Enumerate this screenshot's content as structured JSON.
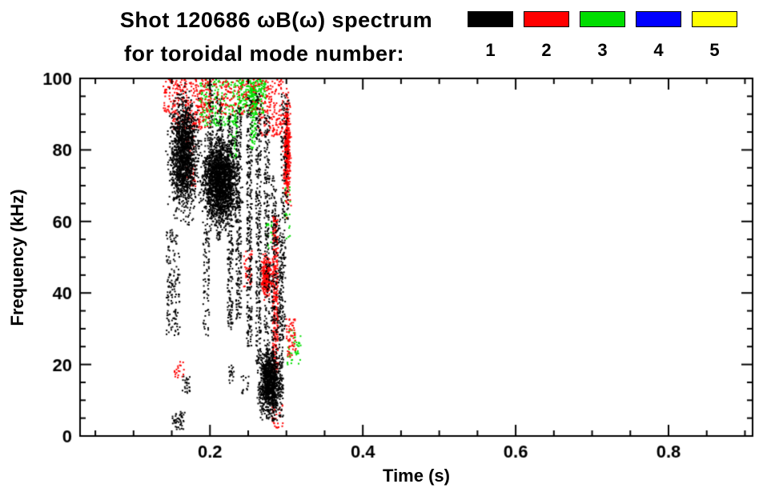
{
  "figure": {
    "title_line1": "Shot 120686 ωB(ω) spectrum",
    "title_line2": "for toroidal mode number:",
    "background": "#ffffff",
    "foreground": "#000000"
  },
  "chart_data": {
    "type": "scatter",
    "title": "Shot 120686 ωB(ω) spectrum for toroidal mode number: 1 2 3 4 5",
    "xlabel": "Time (s)",
    "ylabel": "Frequency (kHz)",
    "xlim": [
      0.03,
      0.91
    ],
    "ylim": [
      0,
      100
    ],
    "grid": false,
    "legend_position": "top-right",
    "xticks": {
      "major": [
        0.2,
        0.4,
        0.6,
        0.8
      ],
      "labels": [
        "0.2",
        "0.4",
        "0.6",
        "0.8"
      ],
      "minor_step": 0.05
    },
    "yticks": {
      "major": [
        0,
        20,
        40,
        60,
        80,
        100
      ],
      "labels": [
        "0",
        "20",
        "40",
        "60",
        "80",
        "100"
      ],
      "minor_step": 5
    },
    "legend": {
      "entries": [
        {
          "label": "1",
          "color": "#000000"
        },
        {
          "label": "2",
          "color": "#ff0000"
        },
        {
          "label": "3",
          "color": "#00dd00"
        },
        {
          "label": "4",
          "color": "#0000ff"
        },
        {
          "label": "5",
          "color": "#ffff00"
        }
      ]
    },
    "clusters": [
      {
        "color": "#00dd00",
        "t": [
          0.185,
          0.235
        ],
        "f": [
          87,
          100
        ],
        "n": 210,
        "s": 2,
        "dist": "uniform"
      },
      {
        "color": "#00dd00",
        "t": [
          0.235,
          0.272
        ],
        "f": [
          90,
          100
        ],
        "n": 270,
        "s": 2,
        "dist": "uniform"
      },
      {
        "color": "#00dd00",
        "t": [
          0.225,
          0.235
        ],
        "f": [
          78,
          90
        ],
        "n": 45,
        "s": 2,
        "dist": "uniform"
      },
      {
        "color": "#00dd00",
        "t": [
          0.252,
          0.259
        ],
        "f": [
          80,
          98
        ],
        "n": 80,
        "s": 2,
        "dist": "uniform"
      },
      {
        "color": "#00dd00",
        "t": [
          0.3,
          0.318
        ],
        "f": [
          20,
          30
        ],
        "n": 45,
        "s": 2,
        "dist": "uniform"
      },
      {
        "color": "#00dd00",
        "t": [
          0.272,
          0.281
        ],
        "f": [
          52,
          60
        ],
        "n": 18,
        "s": 2,
        "dist": "uniform"
      },
      {
        "color": "#00dd00",
        "t": [
          0.296,
          0.304
        ],
        "f": [
          55,
          70
        ],
        "n": 22,
        "s": 2,
        "dist": "uniform"
      },
      {
        "color": "#ff0000",
        "t": [
          0.15,
          0.2
        ],
        "f": [
          86,
          100
        ],
        "n": 280,
        "s": 2,
        "dist": "uniform"
      },
      {
        "color": "#ff0000",
        "t": [
          0.195,
          0.262
        ],
        "f": [
          90,
          100
        ],
        "n": 150,
        "s": 2,
        "dist": "uniform"
      },
      {
        "color": "#ff0000",
        "t": [
          0.262,
          0.295
        ],
        "f": [
          84,
          100
        ],
        "n": 170,
        "s": 2,
        "dist": "uniform"
      },
      {
        "color": "#ff0000",
        "t": [
          0.294,
          0.306
        ],
        "f": [
          60,
          100
        ],
        "n": 420,
        "s": 2,
        "dist": "gauss"
      },
      {
        "color": "#ff0000",
        "t": [
          0.281,
          0.288
        ],
        "f": [
          18,
          62
        ],
        "n": 300,
        "s": 2,
        "dist": "uniform"
      },
      {
        "color": "#ff0000",
        "t": [
          0.264,
          0.282
        ],
        "f": [
          37,
          53
        ],
        "n": 240,
        "s": 2,
        "dist": "gauss"
      },
      {
        "color": "#ff0000",
        "t": [
          0.298,
          0.312
        ],
        "f": [
          22,
          33
        ],
        "n": 55,
        "s": 2,
        "dist": "uniform"
      },
      {
        "color": "#ff0000",
        "t": [
          0.152,
          0.166
        ],
        "f": [
          16,
          21
        ],
        "n": 20,
        "s": 2,
        "dist": "uniform"
      },
      {
        "color": "#ff0000",
        "t": [
          0.28,
          0.295
        ],
        "f": [
          2,
          9
        ],
        "n": 30,
        "s": 2,
        "dist": "uniform"
      },
      {
        "color": "#ff0000",
        "t": [
          0.168,
          0.18
        ],
        "f": [
          70,
          86
        ],
        "n": 50,
        "s": 2,
        "dist": "uniform"
      },
      {
        "color": "#ff0000",
        "t": [
          0.243,
          0.255
        ],
        "f": [
          42,
          52
        ],
        "n": 40,
        "s": 2,
        "dist": "uniform"
      },
      {
        "color": "#ff0000",
        "t": [
          0.138,
          0.15
        ],
        "f": [
          90,
          100
        ],
        "n": 40,
        "s": 2,
        "dist": "uniform"
      },
      {
        "color": "#000000",
        "t": [
          0.14,
          0.19
        ],
        "f": [
          58,
          100
        ],
        "n": 1500,
        "s": 2,
        "dist": "gauss"
      },
      {
        "color": "#000000",
        "t": [
          0.18,
          0.245
        ],
        "f": [
          55,
          88
        ],
        "n": 1900,
        "s": 2,
        "dist": "gauss"
      },
      {
        "color": "#000000",
        "t": [
          0.142,
          0.16
        ],
        "f": [
          28,
          58
        ],
        "n": 150,
        "s": 2,
        "dist": "uniform"
      },
      {
        "color": "#000000",
        "t": [
          0.19,
          0.198
        ],
        "f": [
          28,
          58
        ],
        "n": 80,
        "s": 2,
        "dist": "uniform"
      },
      {
        "color": "#000000",
        "t": [
          0.196,
          0.203
        ],
        "f": [
          60,
          100
        ],
        "n": 90,
        "s": 2,
        "dist": "uniform"
      },
      {
        "color": "#000000",
        "t": [
          0.207,
          0.214
        ],
        "f": [
          55,
          95
        ],
        "n": 140,
        "s": 2,
        "dist": "uniform"
      },
      {
        "color": "#000000",
        "t": [
          0.222,
          0.229
        ],
        "f": [
          30,
          90
        ],
        "n": 220,
        "s": 2,
        "dist": "uniform"
      },
      {
        "color": "#000000",
        "t": [
          0.233,
          0.24
        ],
        "f": [
          33,
          92
        ],
        "n": 230,
        "s": 2,
        "dist": "uniform"
      },
      {
        "color": "#000000",
        "t": [
          0.247,
          0.254
        ],
        "f": [
          25,
          95
        ],
        "n": 260,
        "s": 2,
        "dist": "uniform"
      },
      {
        "color": "#000000",
        "t": [
          0.259,
          0.266
        ],
        "f": [
          20,
          96
        ],
        "n": 280,
        "s": 2,
        "dist": "uniform"
      },
      {
        "color": "#000000",
        "t": [
          0.27,
          0.277
        ],
        "f": [
          12,
          90
        ],
        "n": 230,
        "s": 2,
        "dist": "uniform"
      },
      {
        "color": "#000000",
        "t": [
          0.279,
          0.286
        ],
        "f": [
          4,
          75
        ],
        "n": 200,
        "s": 2,
        "dist": "uniform"
      },
      {
        "color": "#000000",
        "t": [
          0.289,
          0.295
        ],
        "f": [
          5,
          55
        ],
        "n": 140,
        "s": 2,
        "dist": "uniform"
      },
      {
        "color": "#000000",
        "t": [
          0.258,
          0.296
        ],
        "f": [
          3,
          27
        ],
        "n": 950,
        "s": 2,
        "dist": "gauss"
      },
      {
        "color": "#000000",
        "t": [
          0.286,
          0.298
        ],
        "f": [
          27,
          62
        ],
        "n": 110,
        "s": 2,
        "dist": "uniform"
      },
      {
        "color": "#000000",
        "t": [
          0.15,
          0.166
        ],
        "f": [
          2,
          7
        ],
        "n": 45,
        "s": 2,
        "dist": "uniform"
      },
      {
        "color": "#000000",
        "t": [
          0.163,
          0.173
        ],
        "f": [
          12,
          17
        ],
        "n": 26,
        "s": 2,
        "dist": "uniform"
      },
      {
        "color": "#000000",
        "t": [
          0.222,
          0.231
        ],
        "f": [
          15,
          20
        ],
        "n": 18,
        "s": 2,
        "dist": "uniform"
      },
      {
        "color": "#000000",
        "t": [
          0.24,
          0.25
        ],
        "f": [
          12,
          17
        ],
        "n": 15,
        "s": 2,
        "dist": "uniform"
      },
      {
        "color": "#000000",
        "t": [
          0.292,
          0.302
        ],
        "f": [
          60,
          96
        ],
        "n": 110,
        "s": 2,
        "dist": "uniform"
      }
    ]
  }
}
